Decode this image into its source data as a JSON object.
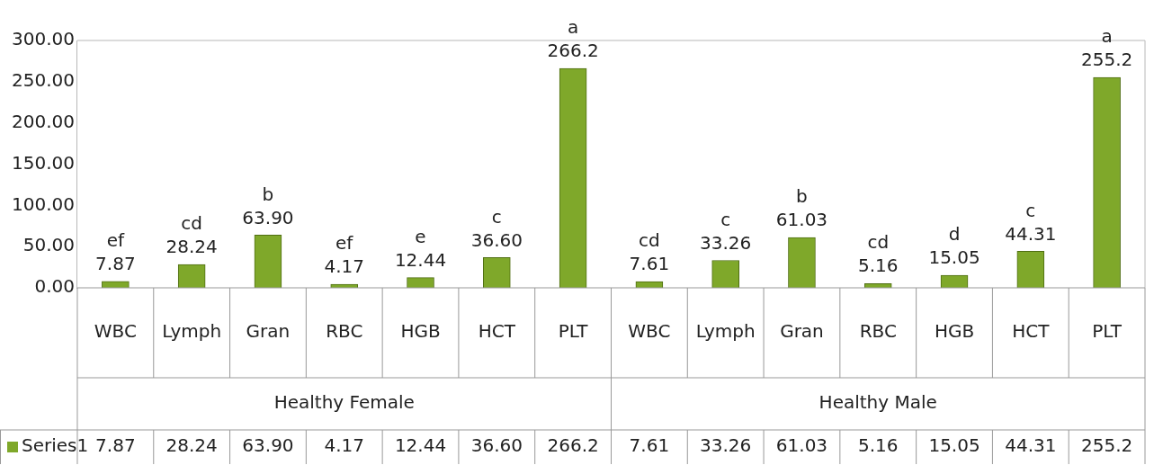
{
  "chart_data": {
    "type": "bar",
    "categories": [
      "WBC",
      "Lymph",
      "Gran",
      "RBC",
      "HGB",
      "HCT",
      "PLT",
      "WBC",
      "Lymph",
      "Gran",
      "RBC",
      "HGB",
      "HCT",
      "PLT"
    ],
    "series": [
      {
        "name": "Series1",
        "color": "#7fa82a",
        "values": [
          7.87,
          28.24,
          63.9,
          4.17,
          12.44,
          36.6,
          266.2,
          7.61,
          33.26,
          61.03,
          5.16,
          15.05,
          44.31,
          255.2
        ],
        "value_labels": [
          "7.87",
          "28.24",
          "63.90",
          "4.17",
          "12.44",
          "36.60",
          "266.2",
          "7.61",
          "33.26",
          "61.03",
          "5.16",
          "15.05",
          "44.31",
          "255.2"
        ]
      }
    ],
    "ylim": [
      0,
      300
    ],
    "yticks": [
      {
        "value": 0,
        "label": "0.00"
      },
      {
        "value": 50,
        "label": "50.00"
      },
      {
        "value": 100,
        "label": "100.00"
      },
      {
        "value": 150,
        "label": "150.00"
      },
      {
        "value": 200,
        "label": "200.00"
      },
      {
        "value": 250,
        "label": "250.00"
      },
      {
        "value": 300,
        "label": "300.00"
      }
    ],
    "grid": false,
    "legend": "bottom",
    "annotations": [
      "ef",
      "cd",
      "b",
      "ef",
      "e",
      "c",
      "a",
      "cd",
      "c",
      "b",
      "cd",
      "d",
      "c",
      "a",
      "Healthy Female",
      "Healthy Male"
    ]
  }
}
